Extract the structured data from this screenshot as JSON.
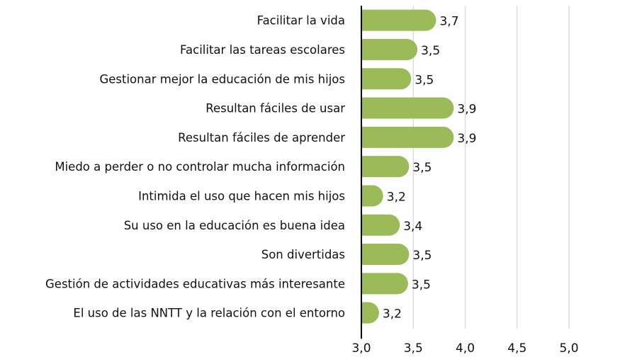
{
  "chart_data": {
    "type": "bar",
    "orientation": "horizontal",
    "categories": [
      "Facilitar la vida",
      "Facilitar las tareas escolares",
      "Gestionar mejor la educación de mis hijos",
      "Resultan fáciles de usar",
      "Resultan fáciles de aprender",
      "Miedo a perder o no controlar mucha información",
      "Intimida el uso que hacen mis hijos",
      "Su uso en la educación es buena idea",
      "Son divertidas",
      "Gestión de actividades educativas más interesante",
      "El uso de las NNTT y la relación con el entorno"
    ],
    "values": [
      3.72,
      3.54,
      3.48,
      3.89,
      3.89,
      3.46,
      3.21,
      3.37,
      3.46,
      3.45,
      3.17
    ],
    "data_labels": [
      "3,7",
      "3,5",
      "3,5",
      "3,9",
      "3,9",
      "3,5",
      "3,2",
      "3,4",
      "3,5",
      "3,5",
      "3,2"
    ],
    "xlim": [
      3.0,
      5.0
    ],
    "xticks": [
      3.0,
      3.5,
      4.0,
      4.5,
      5.0
    ],
    "xtick_labels": [
      "3,0",
      "3,5",
      "4,0",
      "4,5",
      "5,0"
    ],
    "grid": "vertical",
    "bar_color": "#9bbb59",
    "title": "",
    "xlabel": "",
    "ylabel": ""
  }
}
